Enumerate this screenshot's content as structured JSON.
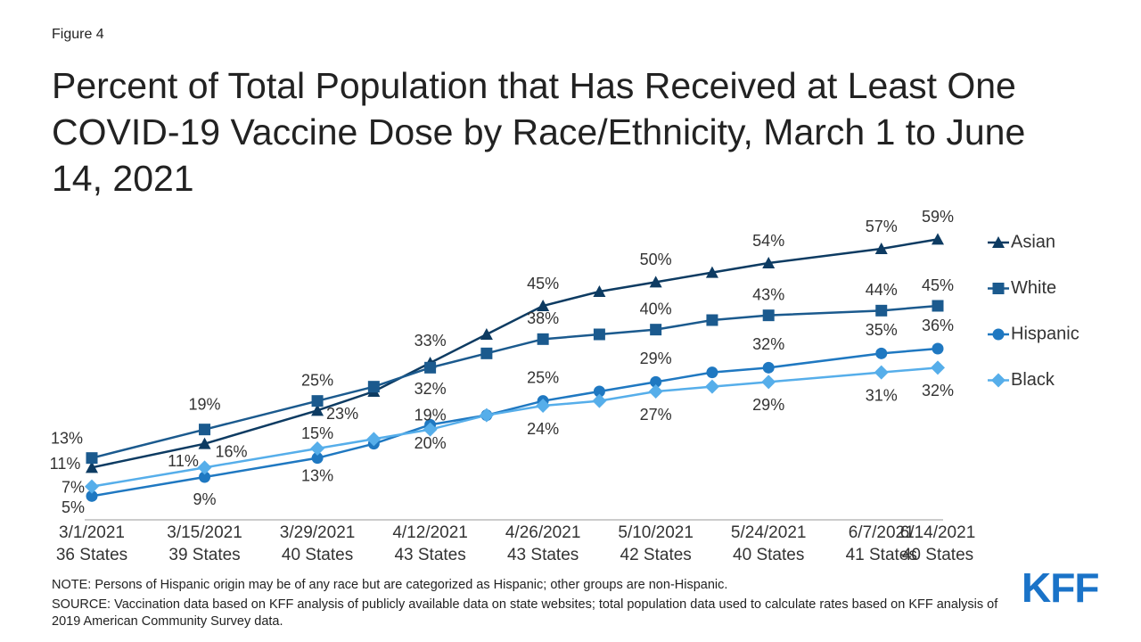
{
  "figure_label": "Figure 4",
  "chart_data": {
    "type": "line",
    "title": "Percent of Total Population that Has Received at Least One COVID-19 Vaccine Dose by Race/Ethnicity, March 1 to June 14, 2021",
    "x": [
      "3/1/2021",
      "3/15/2021",
      "3/29/2021",
      "4/5/2021",
      "4/12/2021",
      "4/19/2021",
      "4/26/2021",
      "5/3/2021",
      "5/10/2021",
      "5/17/2021",
      "5/24/2021",
      "6/7/2021",
      "6/14/2021"
    ],
    "xticks": [
      "3/1/2021",
      "3/15/2021",
      "3/29/2021",
      "4/12/2021",
      "4/26/2021",
      "5/10/2021",
      "5/24/2021",
      "6/7/2021",
      "6/14/2021"
    ],
    "xtick_states": [
      "36 States",
      "39 States",
      "40 States",
      "43 States",
      "43 States",
      "42 States",
      "40 States",
      "41 States",
      "40 States"
    ],
    "ylim": [
      0,
      60
    ],
    "series": [
      {
        "name": "Asian",
        "color": "#0d3b62",
        "marker": "triangle",
        "values": [
          11,
          16,
          23,
          27,
          33,
          39,
          45,
          48,
          50,
          52,
          54,
          57,
          59
        ],
        "value_labels": [
          "11%",
          "16%",
          "23%",
          null,
          "33%",
          null,
          "45%",
          null,
          "50%",
          null,
          "54%",
          "57%",
          "59%"
        ]
      },
      {
        "name": "White",
        "color": "#1b5a8e",
        "marker": "square",
        "values": [
          13,
          19,
          25,
          28,
          32,
          35,
          38,
          39,
          40,
          42,
          43,
          44,
          45
        ],
        "value_labels": [
          "13%",
          "19%",
          "25%",
          null,
          "32%",
          null,
          "38%",
          null,
          "40%",
          null,
          "43%",
          "44%",
          "45%"
        ]
      },
      {
        "name": "Hispanic",
        "color": "#1f78c1",
        "marker": "circle",
        "values": [
          5,
          9,
          13,
          16,
          20,
          22,
          25,
          27,
          29,
          31,
          32,
          35,
          36
        ],
        "value_labels": [
          "5%",
          "9%",
          "13%",
          null,
          "20%",
          null,
          "25%",
          null,
          "29%",
          null,
          "32%",
          "35%",
          "36%"
        ]
      },
      {
        "name": "Black",
        "color": "#56aeea",
        "marker": "diamond",
        "values": [
          7,
          11,
          15,
          17,
          19,
          22,
          24,
          25,
          27,
          28,
          29,
          31,
          32
        ],
        "value_labels": [
          "7%",
          "11%",
          "15%",
          null,
          "19%",
          null,
          "24%",
          null,
          "27%",
          null,
          "29%",
          "31%",
          "32%"
        ]
      }
    ]
  },
  "notes": {
    "note": "NOTE: Persons of Hispanic origin may be of any race but are categorized as Hispanic; other groups are non-Hispanic.",
    "source": "SOURCE: Vaccination data based on KFF analysis of publicly available data on state websites; total population data used to calculate rates based on KFF analysis of 2019 American Community Survey data."
  },
  "logo": "KFF"
}
